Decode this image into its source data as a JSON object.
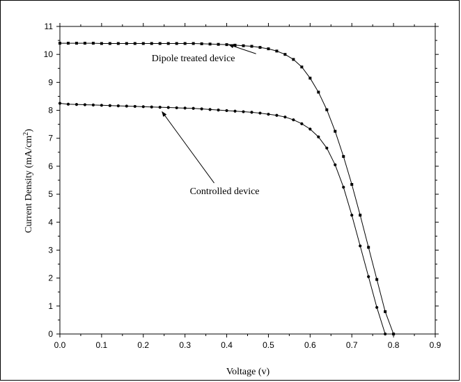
{
  "chart_data": {
    "type": "line",
    "xlabel": "Voltage (v)",
    "ylabel": {
      "main": "Current Density (mA/cm",
      "sup": "2",
      "close": ")"
    },
    "xlim": [
      0.0,
      0.9
    ],
    "ylim": [
      0,
      11
    ],
    "x_ticks": [
      "0.0",
      "0.1",
      "0.2",
      "0.3",
      "0.4",
      "0.5",
      "0.6",
      "0.7",
      "0.8",
      "0.9"
    ],
    "y_ticks": [
      "0",
      "1",
      "2",
      "3",
      "4",
      "5",
      "6",
      "7",
      "8",
      "9",
      "10",
      "11"
    ],
    "grid": false,
    "series": [
      {
        "key": "dipole",
        "marker": "square",
        "color": "#000000",
        "x": [
          0.0,
          0.02,
          0.04,
          0.06,
          0.08,
          0.1,
          0.12,
          0.14,
          0.16,
          0.18,
          0.2,
          0.22,
          0.24,
          0.26,
          0.28,
          0.3,
          0.32,
          0.34,
          0.36,
          0.38,
          0.4,
          0.42,
          0.44,
          0.46,
          0.48,
          0.5,
          0.52,
          0.54,
          0.56,
          0.58,
          0.6,
          0.62,
          0.64,
          0.66,
          0.68,
          0.7,
          0.72,
          0.74,
          0.76,
          0.78,
          0.8
        ],
        "y": [
          10.4,
          10.4,
          10.4,
          10.4,
          10.4,
          10.39,
          10.39,
          10.39,
          10.39,
          10.39,
          10.39,
          10.39,
          10.39,
          10.39,
          10.39,
          10.39,
          10.39,
          10.38,
          10.37,
          10.36,
          10.35,
          10.33,
          10.31,
          10.29,
          10.25,
          10.2,
          10.12,
          10.0,
          9.82,
          9.55,
          9.15,
          8.65,
          8.02,
          7.25,
          6.35,
          5.35,
          4.25,
          3.1,
          1.95,
          0.8,
          0.0
        ]
      },
      {
        "key": "controlled",
        "marker": "circle",
        "color": "#000000",
        "x": [
          0.0,
          0.02,
          0.04,
          0.06,
          0.08,
          0.1,
          0.12,
          0.14,
          0.16,
          0.18,
          0.2,
          0.22,
          0.24,
          0.26,
          0.28,
          0.3,
          0.32,
          0.34,
          0.36,
          0.38,
          0.4,
          0.42,
          0.44,
          0.46,
          0.48,
          0.5,
          0.52,
          0.54,
          0.56,
          0.58,
          0.6,
          0.62,
          0.64,
          0.66,
          0.68,
          0.7,
          0.72,
          0.74,
          0.76,
          0.78
        ],
        "y": [
          8.25,
          8.22,
          8.21,
          8.2,
          8.19,
          8.18,
          8.17,
          8.16,
          8.15,
          8.14,
          8.13,
          8.12,
          8.11,
          8.1,
          8.09,
          8.08,
          8.07,
          8.05,
          8.03,
          8.01,
          7.99,
          7.97,
          7.95,
          7.93,
          7.9,
          7.86,
          7.82,
          7.76,
          7.66,
          7.52,
          7.33,
          7.05,
          6.65,
          6.05,
          5.25,
          4.25,
          3.15,
          2.05,
          0.95,
          0.0
        ]
      }
    ],
    "annotations": [
      {
        "key": "dipole_label",
        "text": "Dipole treated device",
        "target_x": 0.405,
        "target_y": 10.35,
        "label_x": 0.32,
        "label_y": 9.75
      },
      {
        "key": "controlled_label",
        "text": "Controlled device",
        "target_x": 0.245,
        "target_y": 7.95,
        "label_x": 0.395,
        "label_y": 5.0
      }
    ]
  }
}
